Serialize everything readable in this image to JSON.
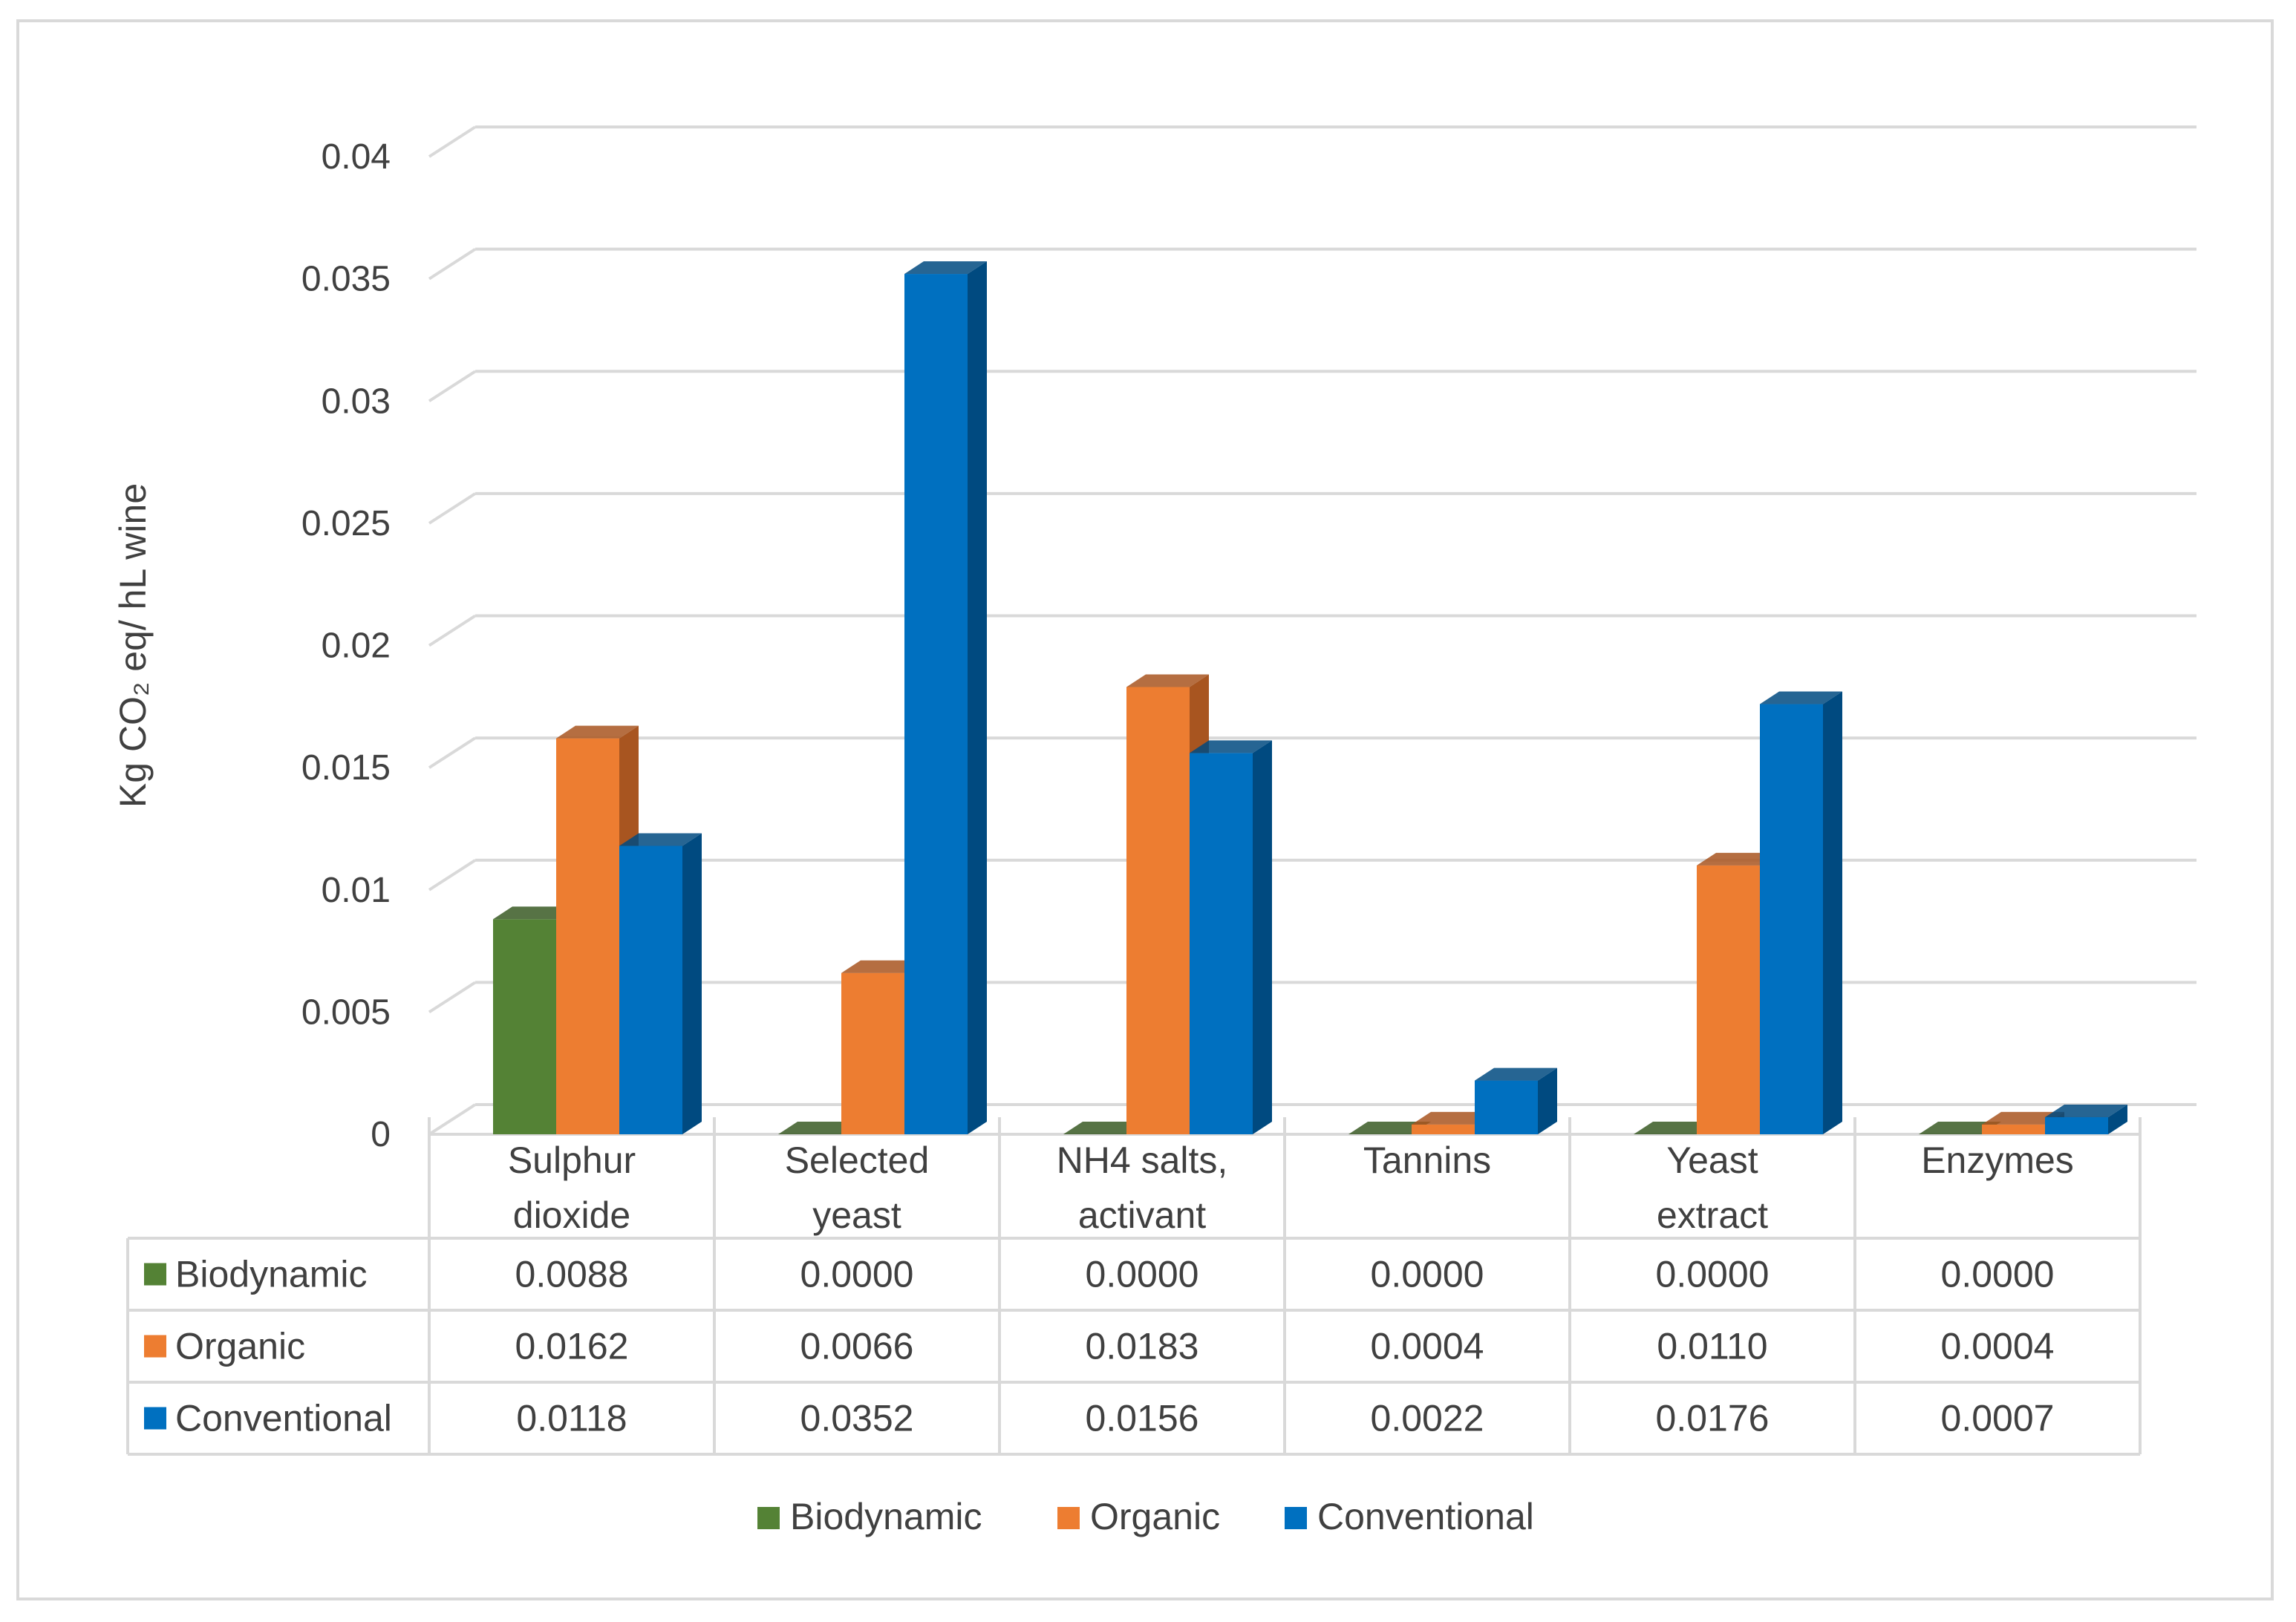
{
  "chart_data": {
    "type": "bar",
    "title": "",
    "ylabel": "Kg CO₂ eq/ hL wine",
    "xlabel": "",
    "ylim": [
      0,
      0.04
    ],
    "yticks": [
      0,
      0.005,
      0.01,
      0.015,
      0.02,
      0.025,
      0.03,
      0.035,
      0.04
    ],
    "ytick_labels": [
      "0",
      "0.005",
      "0.01",
      "0.015",
      "0.02",
      "0.025",
      "0.03",
      "0.035",
      "0.04"
    ],
    "grid": true,
    "legend_position": "bottom",
    "categories": [
      [
        "Sulphur",
        "dioxide"
      ],
      [
        "Selected",
        "yeast"
      ],
      [
        "NH4 salts,",
        "activant"
      ],
      [
        "Tannins"
      ],
      [
        "Yeast",
        "extract"
      ],
      [
        "Enzymes"
      ]
    ],
    "series": [
      {
        "name": "Biodynamic",
        "color": "#548235",
        "side_color": "#3a5b25",
        "values": [
          0.0088,
          0.0,
          0.0,
          0.0,
          0.0,
          0.0
        ],
        "labels": [
          "0.0088",
          "0.0000",
          "0.0000",
          "0.0000",
          "0.0000",
          "0.0000"
        ]
      },
      {
        "name": "Organic",
        "color": "#ed7d31",
        "side_color": "#a85520",
        "values": [
          0.0162,
          0.0066,
          0.0183,
          0.0004,
          0.011,
          0.0004
        ],
        "labels": [
          "0.0162",
          "0.0066",
          "0.0183",
          "0.0004",
          "0.0110",
          "0.0004"
        ]
      },
      {
        "name": "Conventional",
        "color": "#0070c0",
        "side_color": "#004a80",
        "values": [
          0.0118,
          0.0352,
          0.0156,
          0.0022,
          0.0176,
          0.0007
        ],
        "labels": [
          "0.0118",
          "0.0352",
          "0.0156",
          "0.0022",
          "0.0176",
          "0.0007"
        ]
      }
    ]
  }
}
